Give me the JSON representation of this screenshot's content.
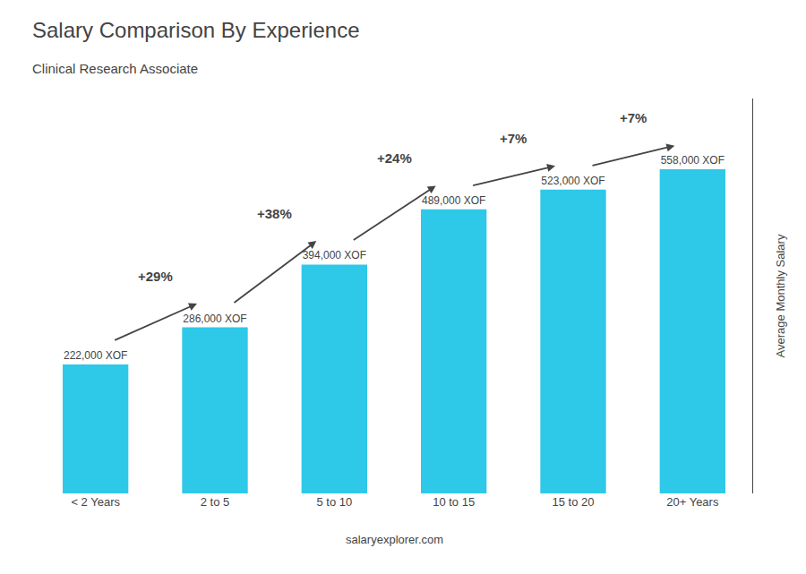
{
  "chart_data": {
    "type": "bar",
    "title": "Salary Comparison By Experience",
    "subtitle": "Clinical Research Associate",
    "ylabel": "Average Monthly Salary",
    "categories": [
      "< 2 Years",
      "2 to 5",
      "5 to 10",
      "10 to 15",
      "15 to 20",
      "20+ Years"
    ],
    "values": [
      222000,
      286000,
      394000,
      489000,
      523000,
      558000
    ],
    "value_labels": [
      "222,000 XOF",
      "286,000 XOF",
      "394,000 XOF",
      "489,000 XOF",
      "523,000 XOF",
      "558,000 XOF"
    ],
    "data_labels": true,
    "color": "#2ec8e8",
    "annotations": [
      "+29%",
      "+38%",
      "+24%",
      "+7%",
      "+7%"
    ],
    "watermark": "salaryexplorer.com",
    "ylim": [
      0,
      680000
    ],
    "yticks": [],
    "grid": false,
    "tick_labels": "x"
  }
}
